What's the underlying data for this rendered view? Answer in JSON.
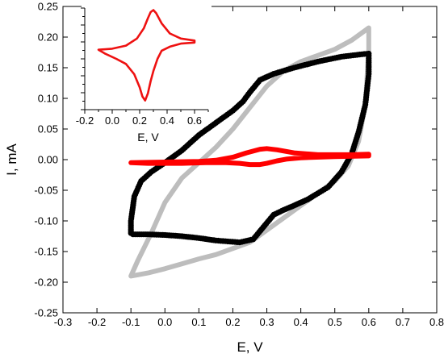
{
  "chart_data": [
    {
      "type": "line",
      "xlabel": "E, V",
      "ylabel": "I, mA",
      "xlim": [
        -0.3,
        0.8
      ],
      "ylim": [
        -0.25,
        0.25
      ],
      "xticks": [
        -0.3,
        -0.2,
        -0.1,
        0.0,
        0.1,
        0.2,
        0.3,
        0.4,
        0.5,
        0.6,
        0.7,
        0.8
      ],
      "xtick_labels": [
        "-0.3",
        "-0.2",
        "-0.1",
        "0.0",
        "0.1",
        "0.2",
        "0.3",
        "0.4",
        "0.5",
        "0.6",
        "0.7",
        "0.8"
      ],
      "yticks": [
        -0.25,
        -0.2,
        -0.15,
        -0.1,
        -0.05,
        0.0,
        0.05,
        0.1,
        0.15,
        0.2,
        0.25
      ],
      "ytick_labels": [
        "-0.25",
        "-0.20",
        "-0.15",
        "-0.10",
        "-0.05",
        "0.00",
        "0.05",
        "0.10",
        "0.15",
        "0.20",
        "0.25"
      ],
      "grid": false,
      "series": [
        {
          "color": "#bdbdbd",
          "style": "thick-line",
          "x": [
            -0.1,
            -0.08,
            -0.04,
            0.0,
            0.05,
            0.1,
            0.15,
            0.2,
            0.25,
            0.3,
            0.35,
            0.4,
            0.45,
            0.5,
            0.55,
            0.6,
            0.6,
            0.59,
            0.57,
            0.54,
            0.5,
            0.45,
            0.4,
            0.35,
            0.3,
            0.25,
            0.2,
            0.15,
            0.1,
            0.05,
            0.0,
            -0.05,
            -0.1,
            -0.1
          ],
          "y": [
            -0.19,
            -0.165,
            -0.12,
            -0.07,
            -0.03,
            -0.005,
            0.02,
            0.05,
            0.085,
            0.12,
            0.145,
            0.16,
            0.17,
            0.18,
            0.195,
            0.215,
            0.18,
            0.09,
            0.03,
            -0.01,
            -0.035,
            -0.055,
            -0.075,
            -0.095,
            -0.115,
            -0.135,
            -0.145,
            -0.155,
            -0.162,
            -0.17,
            -0.178,
            -0.185,
            -0.19,
            -0.19
          ]
        },
        {
          "color": "#000000",
          "style": "dots",
          "x": [
            -0.1,
            -0.1,
            -0.09,
            -0.07,
            -0.04,
            0.0,
            0.05,
            0.1,
            0.15,
            0.2,
            0.23,
            0.25,
            0.28,
            0.32,
            0.38,
            0.45,
            0.52,
            0.58,
            0.6,
            0.6,
            0.59,
            0.57,
            0.55,
            0.52,
            0.48,
            0.42,
            0.38,
            0.35,
            0.32,
            0.29,
            0.26,
            0.22,
            0.15,
            0.1,
            0.05,
            0.0,
            -0.05,
            -0.1
          ],
          "y": [
            -0.12,
            -0.1,
            -0.06,
            -0.035,
            -0.02,
            -0.005,
            0.015,
            0.04,
            0.06,
            0.08,
            0.095,
            0.11,
            0.13,
            0.14,
            0.15,
            0.16,
            0.168,
            0.172,
            0.173,
            0.14,
            0.09,
            0.045,
            0.01,
            -0.02,
            -0.045,
            -0.065,
            -0.075,
            -0.082,
            -0.09,
            -0.11,
            -0.13,
            -0.135,
            -0.132,
            -0.128,
            -0.125,
            -0.123,
            -0.122,
            -0.122
          ]
        },
        {
          "color": "#ff0000",
          "style": "thick-line",
          "x": [
            -0.1,
            0.0,
            0.1,
            0.15,
            0.2,
            0.24,
            0.28,
            0.3,
            0.33,
            0.38,
            0.45,
            0.55,
            0.6,
            0.6,
            0.5,
            0.4,
            0.36,
            0.33,
            0.3,
            0.28,
            0.25,
            0.22,
            0.18,
            0.12,
            0.05,
            -0.05,
            -0.1
          ],
          "y": [
            -0.005,
            -0.004,
            -0.003,
            -0.001,
            0.004,
            0.011,
            0.017,
            0.018,
            0.016,
            0.011,
            0.008,
            0.008,
            0.009,
            0.006,
            0.005,
            0.003,
            0.001,
            -0.002,
            -0.006,
            -0.008,
            -0.008,
            -0.006,
            -0.005,
            -0.005,
            -0.006,
            -0.006,
            -0.005
          ]
        }
      ]
    },
    {
      "type": "line",
      "xlabel": "E, V",
      "ylabel": "",
      "xlim": [
        -0.2,
        0.7
      ],
      "ylim": [
        0.0,
        1.0
      ],
      "xticks": [
        -0.2,
        0.0,
        0.2,
        0.4,
        0.6
      ],
      "xtick_labels": [
        "-0.2",
        "0.0",
        "0.2",
        "0.4",
        "0.6"
      ],
      "grid": false,
      "series": [
        {
          "color": "#ee1111",
          "x": [
            -0.1,
            0.0,
            0.1,
            0.18,
            0.23,
            0.26,
            0.28,
            0.3,
            0.32,
            0.36,
            0.42,
            0.5,
            0.6,
            0.6,
            0.5,
            0.42,
            0.36,
            0.33,
            0.3,
            0.28,
            0.26,
            0.24,
            0.22,
            0.2,
            0.16,
            0.1,
            0.03,
            -0.05,
            -0.1
          ],
          "y": [
            0.59,
            0.6,
            0.63,
            0.7,
            0.8,
            0.9,
            0.96,
            0.98,
            0.95,
            0.85,
            0.75,
            0.7,
            0.68,
            0.66,
            0.65,
            0.62,
            0.58,
            0.5,
            0.38,
            0.28,
            0.16,
            0.09,
            0.13,
            0.22,
            0.35,
            0.45,
            0.5,
            0.55,
            0.59
          ]
        }
      ]
    }
  ]
}
